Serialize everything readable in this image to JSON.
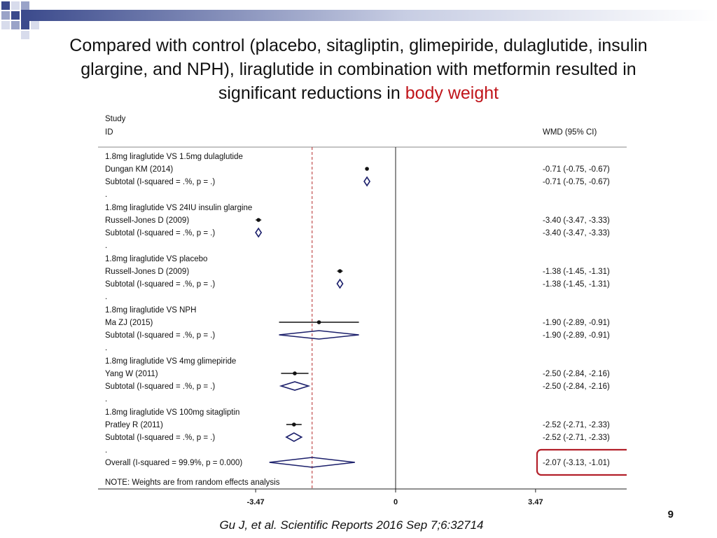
{
  "slide": {
    "title_main": "Compared with control (placebo, sitagliptin, glimepiride, dulaglutide, insulin glargine, and NPH), liraglutide in combination with metformin resulted in significant reductions in ",
    "title_highlight": "body weight",
    "citation": "Gu J, et al. Scientific Reports 2016 Sep 7;6:32714",
    "page_number": "9",
    "highlight_color": "#c0151b",
    "box_color": "#b3202a",
    "corner_colors": [
      "#3b4a8c",
      "#9aa3c8",
      "#d8dcec"
    ]
  },
  "chart_data": {
    "type": "forest",
    "header": {
      "study": "Study",
      "id": "ID",
      "ci": "WMD (95% CI)"
    },
    "xlim": [
      -4.6,
      4.6
    ],
    "xticks": [
      "-3.47",
      "0",
      "3.47"
    ],
    "overall_effect_line": -2.07,
    "note": "NOTE: Weights are from random effects analysis",
    "groups": [
      {
        "heading": "1.8mg liraglutide VS 1.5mg dulaglutide",
        "study": "Dungan KM (2014)",
        "subtotal": "Subtotal  (I-squared = .%, p = .)",
        "est": -0.71,
        "lo": -0.75,
        "hi": -0.67,
        "ci": "-0.71 (-0.75, -0.67)"
      },
      {
        "heading": "1.8mg liraglutide VS 24IU insulin glargine",
        "study": "Russell-Jones D (2009)",
        "subtotal": "Subtotal  (I-squared = .%, p = .)",
        "est": -3.4,
        "lo": -3.47,
        "hi": -3.33,
        "ci": "-3.40 (-3.47, -3.33)"
      },
      {
        "heading": "1.8mg liraglutide VS placebo",
        "study": "Russell-Jones D (2009)",
        "subtotal": "Subtotal  (I-squared = .%, p = .)",
        "est": -1.38,
        "lo": -1.45,
        "hi": -1.31,
        "ci": "-1.38 (-1.45, -1.31)"
      },
      {
        "heading": "1.8mg liraglutide VS NPH",
        "study": "Ma ZJ (2015)",
        "subtotal": "Subtotal  (I-squared = .%, p = .)",
        "est": -1.9,
        "lo": -2.89,
        "hi": -0.91,
        "ci": "-1.90 (-2.89, -0.91)"
      },
      {
        "heading": "1.8mg liraglutide VS 4mg glimepiride",
        "study": "Yang W (2011)",
        "subtotal": "Subtotal  (I-squared = .%, p = .)",
        "est": -2.5,
        "lo": -2.84,
        "hi": -2.16,
        "ci": "-2.50 (-2.84, -2.16)"
      },
      {
        "heading": "1.8mg liraglutide VS 100mg sitagliptin",
        "study": "Pratley R (2011)",
        "subtotal": "Subtotal  (I-squared = .%, p = .)",
        "est": -2.52,
        "lo": -2.71,
        "hi": -2.33,
        "ci": "-2.52 (-2.71, -2.33)"
      }
    ],
    "overall": {
      "label": "Overall  (I-squared = 99.9%, p = 0.000)",
      "est": -2.07,
      "lo": -3.13,
      "hi": -1.01,
      "ci": "-2.07 (-3.13, -1.01)"
    }
  }
}
